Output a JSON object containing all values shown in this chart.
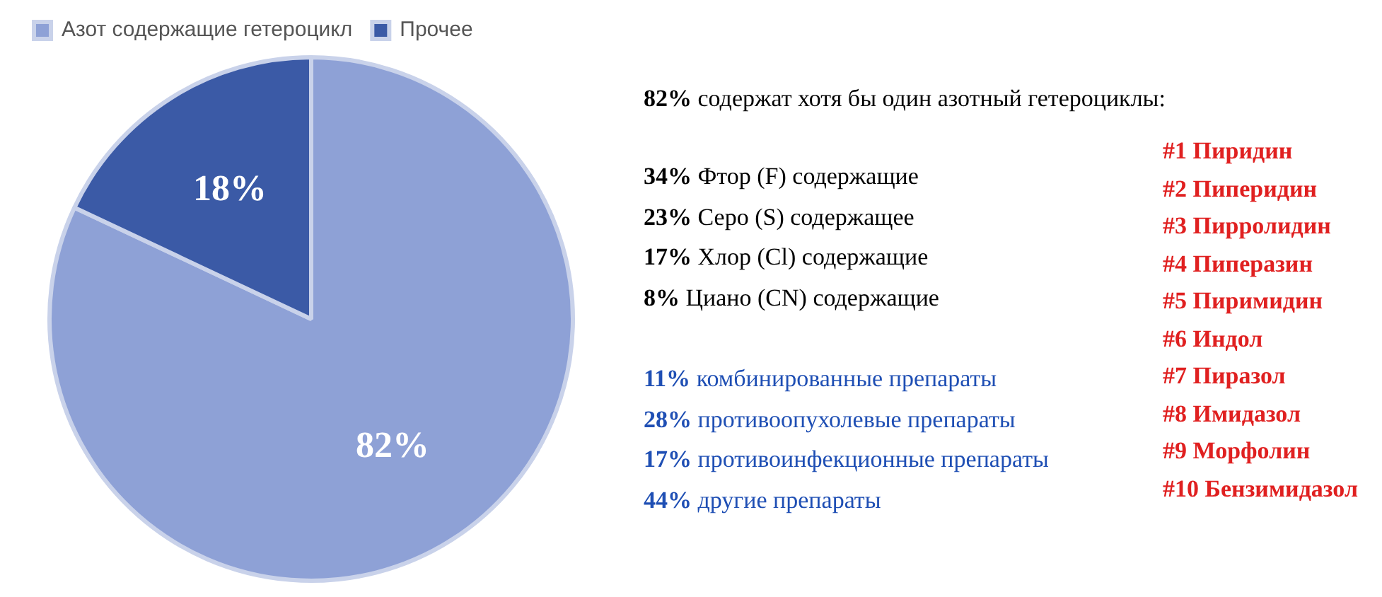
{
  "chart_data": {
    "type": "pie",
    "categories": [
      "Азот содержащие гетероцикл",
      "Прочее"
    ],
    "values": [
      82,
      18
    ],
    "colors": [
      "#8ea1d6",
      "#3b5aa6"
    ],
    "value_labels": [
      "82%",
      "18%"
    ],
    "legend": "top left",
    "annotations": [
      "82% содержат хотя бы один азотный гетероциклы:",
      "34% Фтор (F) содержащие",
      "23% Серо (S) содержащее",
      "17% Хлор (Cl) содержащие",
      "8% Циано (CN) содержащие",
      "11% комбинированные препараты",
      "28% противоопухолевые препараты",
      "17% противоинфекционные препараты",
      "44% другие препараты",
      "#1 Пиридин",
      "#2 Пиперидин",
      "#3 Пирролидин",
      "#4 Пиперазин",
      "#5 Пиримидин",
      "#6 Индол",
      "#7 Пиразол",
      "#8 Имидазол",
      "#9 Морфолин",
      "#10 Бензимидазол"
    ]
  }
}
